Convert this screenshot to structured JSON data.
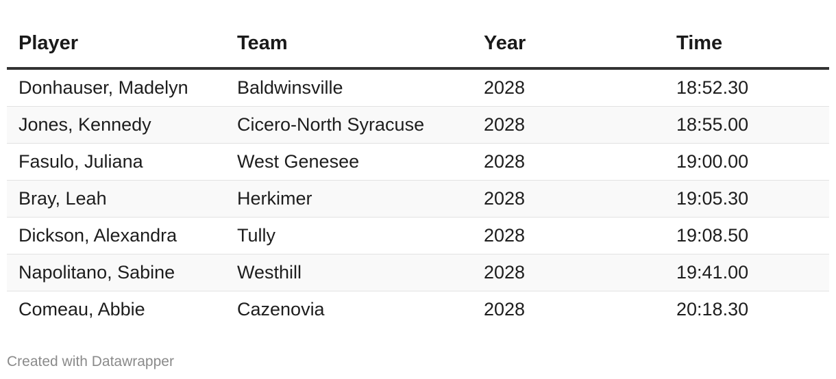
{
  "table": {
    "columns": [
      "Player",
      "Team",
      "Year",
      "Time"
    ],
    "rows": [
      [
        "Donhauser, Madelyn",
        "Baldwinsville",
        "2028",
        "18:52.30"
      ],
      [
        "Jones, Kennedy",
        "Cicero-North Syracuse",
        "2028",
        "18:55.00"
      ],
      [
        "Fasulo, Juliana",
        "West Genesee",
        "2028",
        "19:00.00"
      ],
      [
        "Bray, Leah",
        "Herkimer",
        "2028",
        "19:05.30"
      ],
      [
        "Dickson, Alexandra",
        "Tully",
        "2028",
        "19:08.50"
      ],
      [
        "Napolitano, Sabine",
        "Westhill",
        "2028",
        "19:41.00"
      ],
      [
        "Comeau, Abbie",
        "Cazenovia",
        "2028",
        "20:18.30"
      ]
    ]
  },
  "footer": {
    "credit": "Created with Datawrapper"
  }
}
